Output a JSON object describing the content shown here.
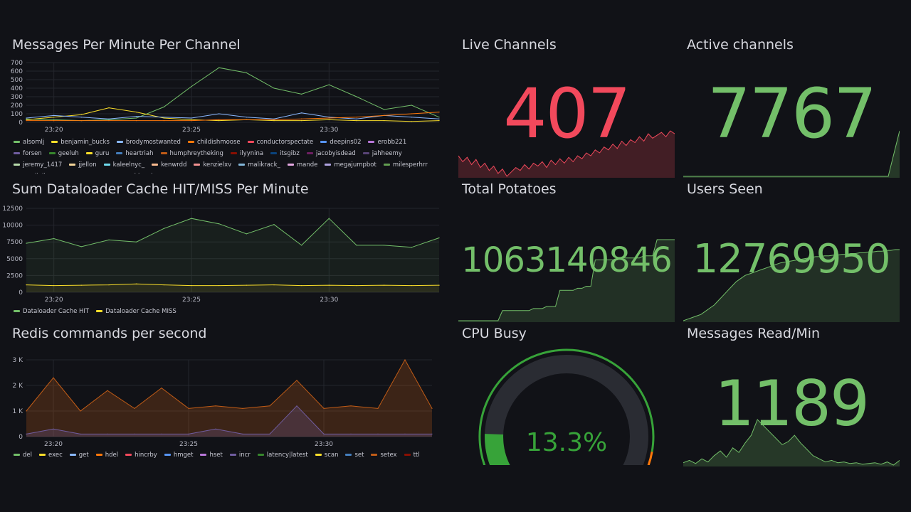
{
  "colors": {
    "background": "#111217",
    "green": "#73bf69",
    "red": "#f2495c",
    "yellow": "#fade2a",
    "orange": "#ff780a",
    "gauge_track": "#2a2c33"
  },
  "panels": {
    "messages": {
      "title": "Messages Per Minute Per Channel",
      "y_ticks": [
        "700",
        "600",
        "500",
        "400",
        "300",
        "200",
        "100",
        "0"
      ],
      "x_ticks": [
        "23:20",
        "23:25",
        "23:30"
      ],
      "legend": [
        {
          "name": "alsomlj",
          "color": "#73bf69"
        },
        {
          "name": "benjamin_bucks",
          "color": "#fade2a"
        },
        {
          "name": "brodymostwanted",
          "color": "#8ab8ff"
        },
        {
          "name": "childishmoose",
          "color": "#ff780a"
        },
        {
          "name": "conductorspectate",
          "color": "#f2495c"
        },
        {
          "name": "deepins02",
          "color": "#5794f2"
        },
        {
          "name": "erobb221",
          "color": "#b877d9"
        },
        {
          "name": "forsen",
          "color": "#705da0"
        },
        {
          "name": "geeluh",
          "color": "#37872d"
        },
        {
          "name": "guru",
          "color": "#fade2a"
        },
        {
          "name": "heartriah",
          "color": "#447ebc"
        },
        {
          "name": "humphreytheking",
          "color": "#c15c17"
        },
        {
          "name": "ilyynina",
          "color": "#890f02"
        },
        {
          "name": "itsgibz",
          "color": "#0a437c"
        },
        {
          "name": "jacobyisdead",
          "color": "#6d1f62"
        },
        {
          "name": "jahheemy",
          "color": "#584477"
        },
        {
          "name": "jeremy_1417",
          "color": "#b7dbab"
        },
        {
          "name": "jjellon",
          "color": "#f4d598"
        },
        {
          "name": "kaleelnyc_",
          "color": "#70dbed"
        },
        {
          "name": "kenwrdd",
          "color": "#f9ba8f"
        },
        {
          "name": "kenzielxv",
          "color": "#f29191"
        },
        {
          "name": "malikrack_",
          "color": "#82b5d8"
        },
        {
          "name": "mande",
          "color": "#e5a8e2"
        },
        {
          "name": "megajumpbot",
          "color": "#aea2e0"
        },
        {
          "name": "milesperhrr",
          "color": "#629e51"
        },
        {
          "name": "nerdiella",
          "color": "#e5ac0e"
        },
        {
          "name": "nueg",
          "color": "#64b0c8"
        },
        {
          "name": "nymn",
          "color": "#e0752d"
        },
        {
          "name": "ohkaydxnce",
          "color": "#bf1b00"
        }
      ]
    },
    "dataloader": {
      "title": "Sum Dataloader Cache HIT/MISS Per Minute",
      "y_ticks": [
        "12500",
        "10000",
        "7500",
        "5000",
        "2500",
        "0"
      ],
      "x_ticks": [
        "23:20",
        "23:25",
        "23:30"
      ],
      "legend": [
        {
          "name": "Dataloader Cache HIT",
          "color": "#73bf69"
        },
        {
          "name": "Dataloader Cache MISS",
          "color": "#fade2a"
        }
      ]
    },
    "redis": {
      "title": "Redis commands per second",
      "y_ticks": [
        "3 K",
        "2 K",
        "1 K",
        "0"
      ],
      "x_ticks": [
        "23:20",
        "23:25",
        "23:30"
      ],
      "legend": [
        {
          "name": "del",
          "color": "#73bf69"
        },
        {
          "name": "exec",
          "color": "#fade2a"
        },
        {
          "name": "get",
          "color": "#8ab8ff"
        },
        {
          "name": "hdel",
          "color": "#ff780a"
        },
        {
          "name": "hincrby",
          "color": "#f2495c"
        },
        {
          "name": "hmget",
          "color": "#5794f2"
        },
        {
          "name": "hset",
          "color": "#b877d9"
        },
        {
          "name": "incr",
          "color": "#705da0"
        },
        {
          "name": "latency|latest",
          "color": "#37872d"
        },
        {
          "name": "scan",
          "color": "#fade2a"
        },
        {
          "name": "set",
          "color": "#447ebc"
        },
        {
          "name": "setex",
          "color": "#c15c17"
        },
        {
          "name": "ttl",
          "color": "#890f02"
        }
      ]
    },
    "live_channels": {
      "title": "Live Channels",
      "value": "407",
      "color": "#f2495c"
    },
    "active_channels": {
      "title": "Active channels",
      "value": "7767",
      "color": "#73bf69"
    },
    "total_potatoes": {
      "title": "Total Potatoes",
      "value": "1063140846",
      "color": "#73bf69"
    },
    "users_seen": {
      "title": "Users Seen",
      "value": "12769950",
      "color": "#73bf69"
    },
    "cpu_busy": {
      "title": "CPU Busy",
      "value": "13.3%",
      "percent": 13.3,
      "color": "#37a339"
    },
    "messages_read": {
      "title": "Messages Read/Min",
      "value": "1189",
      "color": "#73bf69"
    }
  },
  "chart_data": [
    {
      "type": "line",
      "title": "Messages Per Minute Per Channel",
      "x": [
        "23:19",
        "23:20",
        "23:21",
        "23:22",
        "23:23",
        "23:24",
        "23:25",
        "23:26",
        "23:27",
        "23:28",
        "23:29",
        "23:30",
        "23:31",
        "23:32",
        "23:33",
        "23:34"
      ],
      "ylim": [
        0,
        700
      ],
      "series": [
        {
          "name": "alsomlj",
          "values": [
            40,
            30,
            20,
            30,
            50,
            180,
            420,
            640,
            580,
            400,
            330,
            440,
            300,
            150,
            200,
            60
          ]
        },
        {
          "name": "benjamin_bucks",
          "values": [
            30,
            60,
            90,
            170,
            120,
            50,
            30,
            20,
            30,
            20,
            20,
            30,
            20,
            20,
            10,
            20
          ]
        },
        {
          "name": "brodymostwanted",
          "values": [
            50,
            80,
            60,
            40,
            70,
            60,
            50,
            100,
            60,
            40,
            110,
            60,
            40,
            80,
            60,
            40
          ]
        },
        {
          "name": "childishmoose",
          "values": [
            20,
            20,
            20,
            20,
            20,
            20,
            20,
            30,
            30,
            30,
            40,
            50,
            60,
            80,
            100,
            120
          ]
        }
      ]
    },
    {
      "type": "area",
      "title": "Sum Dataloader Cache HIT/MISS Per Minute",
      "x": [
        "23:19",
        "23:20",
        "23:21",
        "23:22",
        "23:23",
        "23:24",
        "23:25",
        "23:26",
        "23:27",
        "23:28",
        "23:29",
        "23:30",
        "23:31",
        "23:32",
        "23:33",
        "23:34"
      ],
      "ylim": [
        0,
        12500
      ],
      "series": [
        {
          "name": "Dataloader Cache HIT",
          "values": [
            7300,
            8000,
            6800,
            7800,
            7500,
            9500,
            11000,
            10200,
            8700,
            10100,
            7000,
            11000,
            7000,
            7000,
            6700,
            8100
          ]
        },
        {
          "name": "Dataloader Cache MISS",
          "values": [
            1100,
            1000,
            1050,
            1100,
            1250,
            1100,
            1000,
            1000,
            1050,
            1100,
            1000,
            1050,
            1000,
            1050,
            1000,
            1050
          ]
        }
      ]
    },
    {
      "type": "area",
      "title": "Redis commands per second",
      "x": [
        "23:19",
        "23:20",
        "23:21",
        "23:22",
        "23:23",
        "23:24",
        "23:25",
        "23:26",
        "23:27",
        "23:28",
        "23:29",
        "23:30",
        "23:31",
        "23:32",
        "23:33",
        "23:34"
      ],
      "ylim": [
        0,
        3000
      ],
      "series": [
        {
          "name": "hdel",
          "values": [
            1000,
            2300,
            1000,
            1800,
            1100,
            1900,
            1100,
            1200,
            1100,
            1200,
            2200,
            1100,
            1200,
            1100,
            3000,
            1100
          ]
        },
        {
          "name": "incr",
          "values": [
            100,
            300,
            100,
            100,
            100,
            100,
            100,
            300,
            100,
            100,
            1200,
            100,
            100,
            100,
            100,
            100
          ]
        }
      ]
    }
  ]
}
